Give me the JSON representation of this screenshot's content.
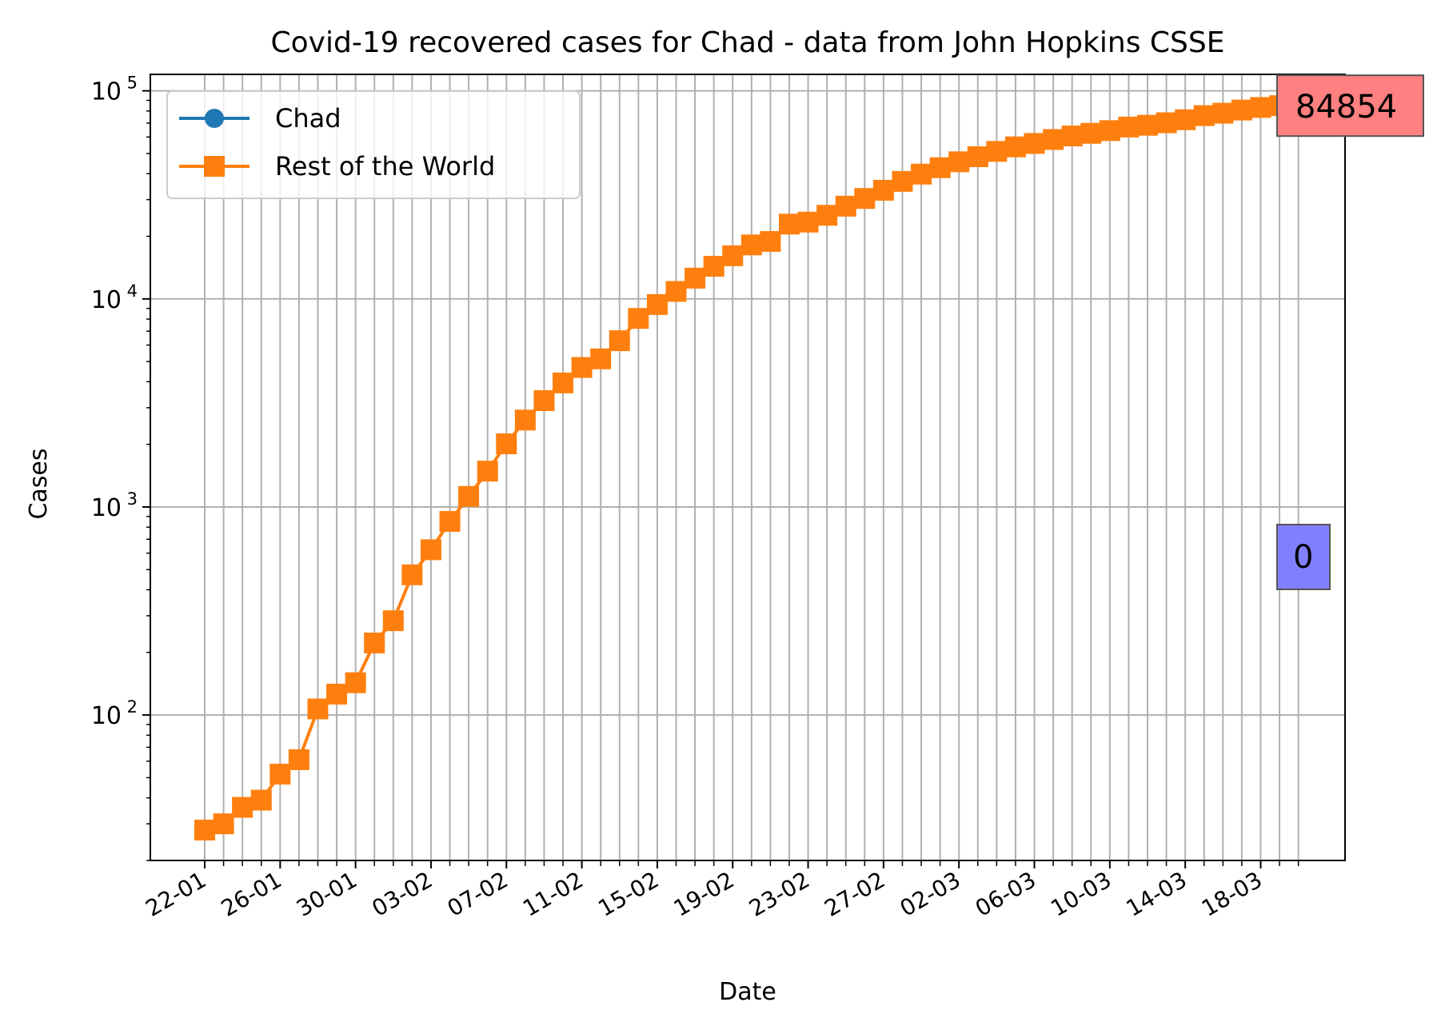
{
  "chart_data": {
    "type": "line",
    "title": "Covid-19 recovered cases for Chad - data from John Hopkins CSSE",
    "xlabel": "Date",
    "ylabel": "Cases",
    "y_scale": "log",
    "ylim": [
      20,
      120000
    ],
    "grid": true,
    "legend_position": "top-left",
    "x": [
      "22-01",
      "23-01",
      "24-01",
      "25-01",
      "26-01",
      "27-01",
      "28-01",
      "29-01",
      "30-01",
      "31-01",
      "01-02",
      "02-02",
      "03-02",
      "04-02",
      "05-02",
      "06-02",
      "07-02",
      "08-02",
      "09-02",
      "10-02",
      "11-02",
      "12-02",
      "13-02",
      "14-02",
      "15-02",
      "16-02",
      "17-02",
      "18-02",
      "19-02",
      "20-02",
      "21-02",
      "22-02",
      "23-02",
      "24-02",
      "25-02",
      "26-02",
      "27-02",
      "28-02",
      "29-02",
      "01-03",
      "02-03",
      "03-03",
      "04-03",
      "05-03",
      "06-03",
      "07-03",
      "08-03",
      "09-03",
      "10-03",
      "11-03",
      "12-03",
      "13-03",
      "14-03",
      "15-03",
      "16-03",
      "17-03",
      "18-03",
      "19-03",
      "20-03"
    ],
    "x_tick_labels": [
      "22-01",
      "26-01",
      "30-01",
      "03-02",
      "07-02",
      "11-02",
      "15-02",
      "19-02",
      "23-02",
      "27-02",
      "02-03",
      "06-03",
      "10-03",
      "14-03",
      "18-03"
    ],
    "y_tick_labels": [
      {
        "value": 100,
        "base": "10",
        "exp": "2"
      },
      {
        "value": 1000,
        "base": "10",
        "exp": "3"
      },
      {
        "value": 10000,
        "base": "10",
        "exp": "4"
      },
      {
        "value": 100000,
        "base": "10",
        "exp": "5"
      }
    ],
    "series": [
      {
        "name": "Chad",
        "color": "#1f77b4",
        "marker": "circle",
        "values": [
          0,
          0,
          0,
          0,
          0,
          0,
          0,
          0,
          0,
          0,
          0,
          0,
          0,
          0,
          0,
          0,
          0,
          0,
          0,
          0,
          0,
          0,
          0,
          0,
          0,
          0,
          0,
          0,
          0,
          0,
          0,
          0,
          0,
          0,
          0,
          0,
          0,
          0,
          0,
          0,
          0,
          0,
          0,
          0,
          0,
          0,
          0,
          0,
          0,
          0,
          0,
          0,
          0,
          0,
          0,
          0,
          0,
          0,
          0
        ]
      },
      {
        "name": "Rest of the World",
        "color": "#ff7f0e",
        "marker": "square",
        "values": [
          28,
          30,
          36,
          39,
          52,
          61,
          107,
          126,
          143,
          222,
          284,
          472,
          623,
          852,
          1124,
          1487,
          2011,
          2616,
          3244,
          3946,
          4683,
          5150,
          6295,
          8058,
          9395,
          10865,
          12583,
          14352,
          16121,
          18177,
          18890,
          22886,
          23394,
          25227,
          27905,
          30384,
          33277,
          36711,
          39782,
          42716,
          45602,
          48229,
          51171,
          53797,
          55866,
          58359,
          60694,
          62494,
          64404,
          67003,
          68324,
          70251,
          72624,
          76034,
          78088,
          80840,
          83207,
          84854,
          84854
        ]
      }
    ],
    "annotations": [
      {
        "text": "84854",
        "series": "Rest of the World",
        "box_color": "#ff8080"
      },
      {
        "text": "0",
        "series": "Chad",
        "box_color": "#8080ff"
      }
    ]
  }
}
